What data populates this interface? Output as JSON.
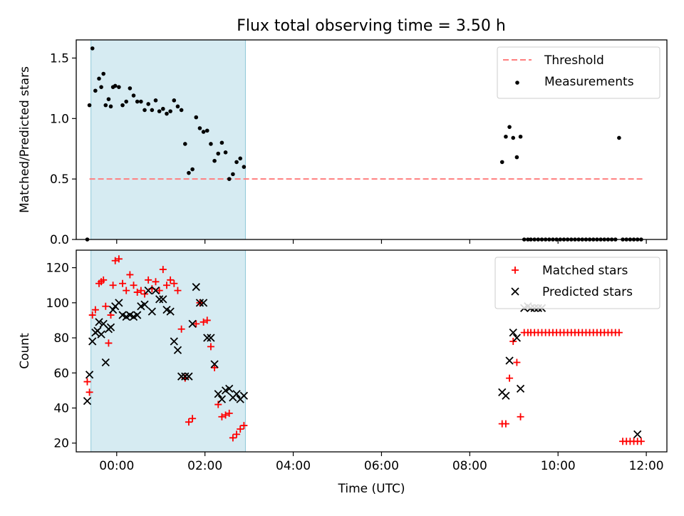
{
  "figure": {
    "title": "Flux total observing time = 3.50 h"
  },
  "chart_data": [
    {
      "type": "scatter",
      "panel": "top",
      "ylabel": "Matched/Predicted stars",
      "xlabel": "",
      "xlim": [
        "-00:55",
        "12:28"
      ],
      "ylim": [
        0,
        1.65
      ],
      "yticks": [
        0.0,
        0.5,
        1.0,
        1.5
      ],
      "ytick_labels": [
        "0.0",
        "0.5",
        "1.0",
        "1.5"
      ],
      "xtick_labels_shown": false,
      "shaded_span": {
        "from": "-00:35",
        "to": "02:55",
        "color": "#add8e6"
      },
      "legend": {
        "placement": "top-right",
        "entries": [
          {
            "label": "Threshold",
            "kind": "dashed-line",
            "color": "#ff7f7f"
          },
          {
            "label": "Measurements",
            "kind": "dot",
            "color": "#000000"
          }
        ]
      },
      "threshold": {
        "label": "Threshold",
        "value": 0.5,
        "from": "-00:37",
        "to": "11:55",
        "color": "#ff7f7f"
      },
      "series": [
        {
          "name": "Measurements",
          "marker": "dot",
          "color": "#000000",
          "x": [
            "-00:40",
            "-00:37",
            "-00:33",
            "-00:29",
            "-00:24",
            "-00:21",
            "-00:18",
            "-00:15",
            "-00:11",
            "-00:08",
            "-00:05",
            "-00:02",
            "00:03",
            "00:08",
            "00:13",
            "00:18",
            "00:23",
            "00:28",
            "00:33",
            "00:38",
            "00:43",
            "00:48",
            "00:53",
            "00:58",
            "01:03",
            "01:08",
            "01:13",
            "01:18",
            "01:23",
            "01:28",
            "01:33",
            "01:38",
            "01:43",
            "01:48",
            "01:53",
            "01:58",
            "02:03",
            "02:08",
            "02:13",
            "02:18",
            "02:23",
            "02:28",
            "02:33",
            "02:38",
            "02:43",
            "02:48",
            "02:53",
            "08:44",
            "08:49",
            "08:54",
            "08:59",
            "09:04",
            "09:09",
            "09:14",
            "09:19",
            "09:23",
            "09:28",
            "09:33",
            "09:38",
            "09:43",
            "09:48",
            "09:53",
            "09:58",
            "10:03",
            "10:08",
            "10:13",
            "10:18",
            "10:23",
            "10:28",
            "10:33",
            "10:38",
            "10:43",
            "10:48",
            "10:53",
            "10:58",
            "11:03",
            "11:08",
            "11:13",
            "11:18",
            "11:23",
            "11:28",
            "11:33",
            "11:38",
            "11:43",
            "11:48",
            "11:53"
          ],
          "y": [
            0.0,
            1.11,
            1.58,
            1.23,
            1.33,
            1.26,
            1.37,
            1.11,
            1.16,
            1.1,
            1.26,
            1.27,
            1.26,
            1.11,
            1.14,
            1.25,
            1.19,
            1.14,
            1.14,
            1.07,
            1.12,
            1.07,
            1.15,
            1.06,
            1.08,
            1.04,
            1.06,
            1.15,
            1.1,
            1.07,
            0.79,
            0.55,
            0.58,
            1.01,
            0.92,
            0.89,
            0.9,
            0.79,
            0.65,
            0.71,
            0.8,
            0.72,
            0.5,
            0.54,
            0.64,
            0.67,
            0.6,
            0.64,
            0.85,
            0.93,
            0.84,
            0.68,
            0.85,
            0.0,
            0.0,
            0.0,
            0.0,
            0.0,
            0.0,
            0.0,
            0.0,
            0.0,
            0.0,
            0.0,
            0.0,
            0.0,
            0.0,
            0.0,
            0.0,
            0.0,
            0.0,
            0.0,
            0.0,
            0.0,
            0.0,
            0.0,
            0.0,
            0.0,
            0.0,
            0.84,
            0.0,
            0.0,
            0.0,
            0.0,
            0.0,
            0.0
          ]
        }
      ]
    },
    {
      "type": "scatter",
      "panel": "bottom",
      "ylabel": "Count",
      "xlabel": "Time (UTC)",
      "xlim": [
        "-00:55",
        "12:28"
      ],
      "ylim": [
        15,
        130
      ],
      "yticks": [
        20,
        40,
        60,
        80,
        100,
        120
      ],
      "ytick_labels": [
        "20",
        "40",
        "60",
        "80",
        "100",
        "120"
      ],
      "xticks": [
        "00:00",
        "02:00",
        "04:00",
        "06:00",
        "08:00",
        "10:00",
        "12:00"
      ],
      "xtick_labels": [
        "00:00",
        "02:00",
        "04:00",
        "06:00",
        "08:00",
        "10:00",
        "12:00"
      ],
      "shaded_span": {
        "from": "-00:35",
        "to": "02:55",
        "color": "#add8e6"
      },
      "legend": {
        "placement": "top-right",
        "entries": [
          {
            "label": "Matched stars",
            "kind": "plus",
            "color": "#ff0000"
          },
          {
            "label": "Predicted stars",
            "kind": "x",
            "color": "#000000"
          }
        ]
      },
      "series": [
        {
          "name": "Matched stars",
          "marker": "plus",
          "color": "#ff0000",
          "x": [
            "-00:40",
            "-00:37",
            "-00:33",
            "-00:29",
            "-00:24",
            "-00:21",
            "-00:18",
            "-00:15",
            "-00:11",
            "-00:08",
            "-00:05",
            "-00:02",
            "00:03",
            "00:08",
            "00:13",
            "00:18",
            "00:23",
            "00:28",
            "00:33",
            "00:38",
            "00:43",
            "00:48",
            "00:53",
            "00:58",
            "01:03",
            "01:08",
            "01:13",
            "01:18",
            "01:23",
            "01:28",
            "01:33",
            "01:38",
            "01:43",
            "01:48",
            "01:53",
            "01:58",
            "02:03",
            "02:08",
            "02:13",
            "02:18",
            "02:23",
            "02:28",
            "02:33",
            "02:38",
            "02:43",
            "02:48",
            "02:53",
            "08:44",
            "08:49",
            "08:54",
            "08:59",
            "09:04",
            "09:09",
            "09:14",
            "09:19",
            "09:23",
            "09:28",
            "09:33",
            "09:38",
            "09:43",
            "09:48",
            "09:53",
            "09:58",
            "10:03",
            "10:08",
            "10:13",
            "10:18",
            "10:23",
            "10:28",
            "10:33",
            "10:38",
            "10:43",
            "10:48",
            "10:53",
            "10:58",
            "11:03",
            "11:08",
            "11:13",
            "11:18",
            "11:23",
            "11:28",
            "11:33",
            "11:38",
            "11:43",
            "11:48",
            "11:53"
          ],
          "y": [
            55,
            49,
            93,
            96,
            111,
            112,
            113,
            98,
            77,
            93,
            110,
            124,
            125,
            111,
            107,
            116,
            110,
            106,
            107,
            105,
            113,
            108,
            112,
            107,
            119,
            110,
            113,
            111,
            107,
            85,
            57,
            32,
            34,
            88,
            100,
            89,
            90,
            75,
            63,
            42,
            35,
            36,
            37,
            23,
            25,
            28,
            30,
            31,
            31,
            57,
            78,
            66,
            35,
            83,
            83,
            83,
            83,
            83,
            83,
            83,
            83,
            83,
            83,
            83,
            83,
            83,
            83,
            83,
            83,
            83,
            83,
            83,
            83,
            83,
            83,
            83,
            83,
            83,
            83,
            83,
            21,
            21,
            21,
            21,
            21,
            21
          ]
        },
        {
          "name": "Predicted stars",
          "marker": "x",
          "color": "#000000",
          "x": [
            "-00:40",
            "-00:37",
            "-00:33",
            "-00:29",
            "-00:26",
            "-00:24",
            "-00:21",
            "-00:18",
            "-00:15",
            "-00:11",
            "-00:08",
            "-00:05",
            "-00:02",
            "00:03",
            "00:08",
            "00:13",
            "00:18",
            "00:23",
            "00:28",
            "00:33",
            "00:38",
            "00:43",
            "00:48",
            "00:53",
            "00:58",
            "01:03",
            "01:08",
            "01:13",
            "01:18",
            "01:23",
            "01:28",
            "01:33",
            "01:38",
            "01:43",
            "01:48",
            "01:53",
            "01:58",
            "02:03",
            "02:08",
            "02:13",
            "02:18",
            "02:23",
            "02:28",
            "02:33",
            "02:38",
            "02:43",
            "02:48",
            "02:53",
            "08:44",
            "08:49",
            "08:54",
            "08:59",
            "09:04",
            "09:09",
            "09:14",
            "09:19",
            "09:23",
            "09:28",
            "09:33",
            "09:38",
            "11:48"
          ],
          "y": [
            44,
            59,
            78,
            83,
            84,
            89,
            82,
            88,
            66,
            85,
            86,
            96,
            98,
            100,
            93,
            92,
            93,
            92,
            93,
            98,
            99,
            107,
            95,
            107,
            102,
            102,
            96,
            95,
            78,
            73,
            58,
            58,
            58,
            88,
            109,
            100,
            100,
            80,
            80,
            65,
            48,
            45,
            50,
            51,
            46,
            48,
            45,
            47,
            49,
            47,
            67,
            83,
            80,
            51,
            97,
            98,
            97,
            97,
            97,
            97,
            25
          ]
        }
      ]
    }
  ]
}
